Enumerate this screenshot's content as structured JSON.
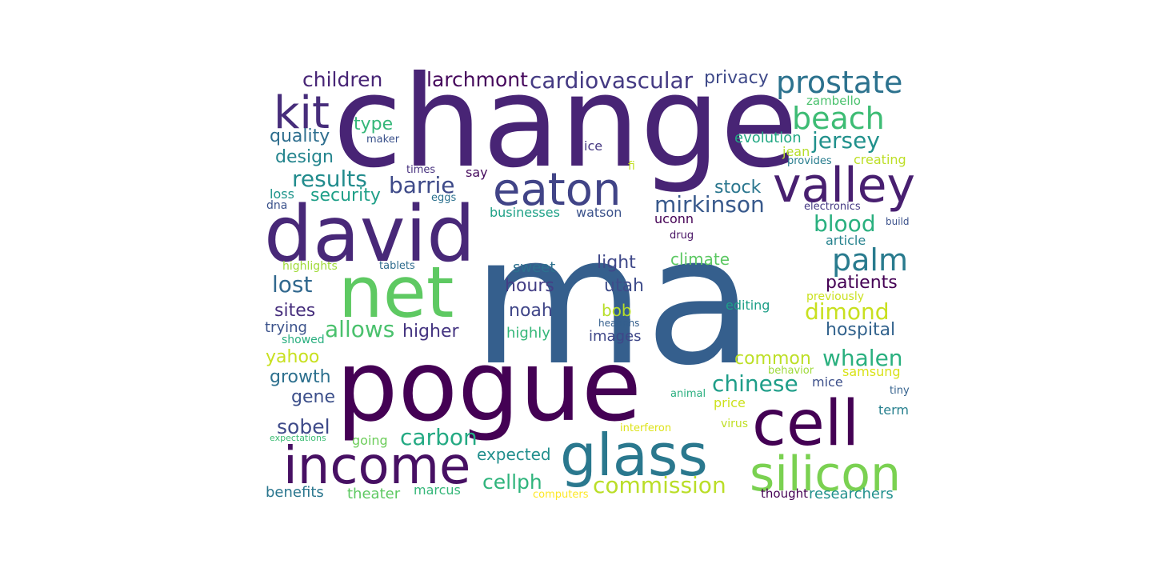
{
  "words": [
    {
      "text": "ma",
      "color": "#355f8d"
    },
    {
      "text": "change",
      "color": "#482475"
    },
    {
      "text": "pogue",
      "color": "#440154"
    },
    {
      "text": "david",
      "color": "#482878"
    },
    {
      "text": "net",
      "color": "#5ec962"
    },
    {
      "text": "income",
      "color": "#471063"
    },
    {
      "text": "glass",
      "color": "#2a788e"
    },
    {
      "text": "cell",
      "color": "#440154"
    },
    {
      "text": "silicon",
      "color": "#7ad151"
    },
    {
      "text": "eaton",
      "color": "#414487"
    },
    {
      "text": "valley",
      "color": "#481f70"
    },
    {
      "text": "kit",
      "color": "#472d7b"
    },
    {
      "text": "prostate",
      "color": "#2c728e"
    },
    {
      "text": "beach",
      "color": "#3dbc74"
    },
    {
      "text": "palm",
      "color": "#297b8e"
    },
    {
      "text": "jersey",
      "color": "#21918c"
    },
    {
      "text": "cardiovascular",
      "color": "#443a83"
    },
    {
      "text": "larchmont",
      "color": "#46085c"
    },
    {
      "text": "children",
      "color": "#482576"
    },
    {
      "text": "privacy",
      "color": "#3e4989"
    },
    {
      "text": "zambello",
      "color": "#4ac16d"
    },
    {
      "text": "type",
      "color": "#35b779"
    },
    {
      "text": "quality",
      "color": "#2e6e8e"
    },
    {
      "text": "maker",
      "color": "#3b528b"
    },
    {
      "text": "ice",
      "color": "#453781"
    },
    {
      "text": "evolution",
      "color": "#22a884"
    },
    {
      "text": "jean",
      "color": "#b5de2b"
    },
    {
      "text": "design",
      "color": "#25858e"
    },
    {
      "text": "times",
      "color": "#46307e"
    },
    {
      "text": "fi",
      "color": "#c2df23"
    },
    {
      "text": "provides",
      "color": "#287d8e"
    },
    {
      "text": "creating",
      "color": "#bddf26"
    },
    {
      "text": "results",
      "color": "#228c8d"
    },
    {
      "text": "say",
      "color": "#450b5d"
    },
    {
      "text": "barrie",
      "color": "#3e4a89"
    },
    {
      "text": "stock",
      "color": "#2a768e"
    },
    {
      "text": "mirkinson",
      "color": "#38598c"
    },
    {
      "text": "loss",
      "color": "#1f958b"
    },
    {
      "text": "security",
      "color": "#1fa088"
    },
    {
      "text": "eggs",
      "color": "#2c718e"
    },
    {
      "text": "dna",
      "color": "#3b528b"
    },
    {
      "text": "businesses",
      "color": "#1fa187"
    },
    {
      "text": "watson",
      "color": "#3b528b"
    },
    {
      "text": "electronics",
      "color": "#443983"
    },
    {
      "text": "blood",
      "color": "#2ab07f"
    },
    {
      "text": "uconn",
      "color": "#440154"
    },
    {
      "text": "build",
      "color": "#3b518b"
    },
    {
      "text": "drug",
      "color": "#471164"
    },
    {
      "text": "article",
      "color": "#26828e"
    },
    {
      "text": "highlights",
      "color": "#a0da39"
    },
    {
      "text": "tablets",
      "color": "#2f6c8e"
    },
    {
      "text": "climate",
      "color": "#5cc863"
    },
    {
      "text": "light",
      "color": "#3f4889"
    },
    {
      "text": "sweet",
      "color": "#2d708e"
    },
    {
      "text": "lost",
      "color": "#31688e"
    },
    {
      "text": "hours",
      "color": "#433e85"
    },
    {
      "text": "utah",
      "color": "#3e4c8a"
    },
    {
      "text": "patients",
      "color": "#440154"
    },
    {
      "text": "previously",
      "color": "#cae11f"
    },
    {
      "text": "sites",
      "color": "#472f7d"
    },
    {
      "text": "noah",
      "color": "#404688"
    },
    {
      "text": "bob",
      "color": "#b8de29"
    },
    {
      "text": "editing",
      "color": "#1f9f88"
    },
    {
      "text": "dimond",
      "color": "#c8e020"
    },
    {
      "text": "trying",
      "color": "#3b528b"
    },
    {
      "text": "allows",
      "color": "#4ac16d"
    },
    {
      "text": "higher",
      "color": "#453581"
    },
    {
      "text": "highly",
      "color": "#35b779"
    },
    {
      "text": "headphs",
      "color": "#355f8d"
    },
    {
      "text": "hospital",
      "color": "#33638d"
    },
    {
      "text": "showed",
      "color": "#29af7f"
    },
    {
      "text": "images",
      "color": "#3f4788"
    },
    {
      "text": "yahoo",
      "color": "#c8e020"
    },
    {
      "text": "common",
      "color": "#bddf26"
    },
    {
      "text": "whalen",
      "color": "#2ab07f"
    },
    {
      "text": "growth",
      "color": "#2d708e"
    },
    {
      "text": "behavior",
      "color": "#9fda3a"
    },
    {
      "text": "samsung",
      "color": "#d8e219"
    },
    {
      "text": "chinese",
      "color": "#1f9e89"
    },
    {
      "text": "mice",
      "color": "#3c4f8a"
    },
    {
      "text": "gene",
      "color": "#3c4f8a"
    },
    {
      "text": "animal",
      "color": "#29af7f"
    },
    {
      "text": "tiny",
      "color": "#34618d"
    },
    {
      "text": "price",
      "color": "#cde11d"
    },
    {
      "text": "sobel",
      "color": "#3e4a89"
    },
    {
      "text": "term",
      "color": "#27808e"
    },
    {
      "text": "interferon",
      "color": "#dde318"
    },
    {
      "text": "virus",
      "color": "#c0df25"
    },
    {
      "text": "carbon",
      "color": "#24aa83"
    },
    {
      "text": "expectations",
      "color": "#3dbc74"
    },
    {
      "text": "going",
      "color": "#6ccd5a"
    },
    {
      "text": "expected",
      "color": "#218f8d"
    },
    {
      "text": "cellph",
      "color": "#2fb47c"
    },
    {
      "text": "commission",
      "color": "#bade28"
    },
    {
      "text": "marcus",
      "color": "#35b779"
    },
    {
      "text": "benefits",
      "color": "#2a768e"
    },
    {
      "text": "theater",
      "color": "#5ec962"
    },
    {
      "text": "computers",
      "color": "#fde725"
    },
    {
      "text": "thought",
      "color": "#440154"
    },
    {
      "text": "researchers",
      "color": "#21908d"
    }
  ]
}
